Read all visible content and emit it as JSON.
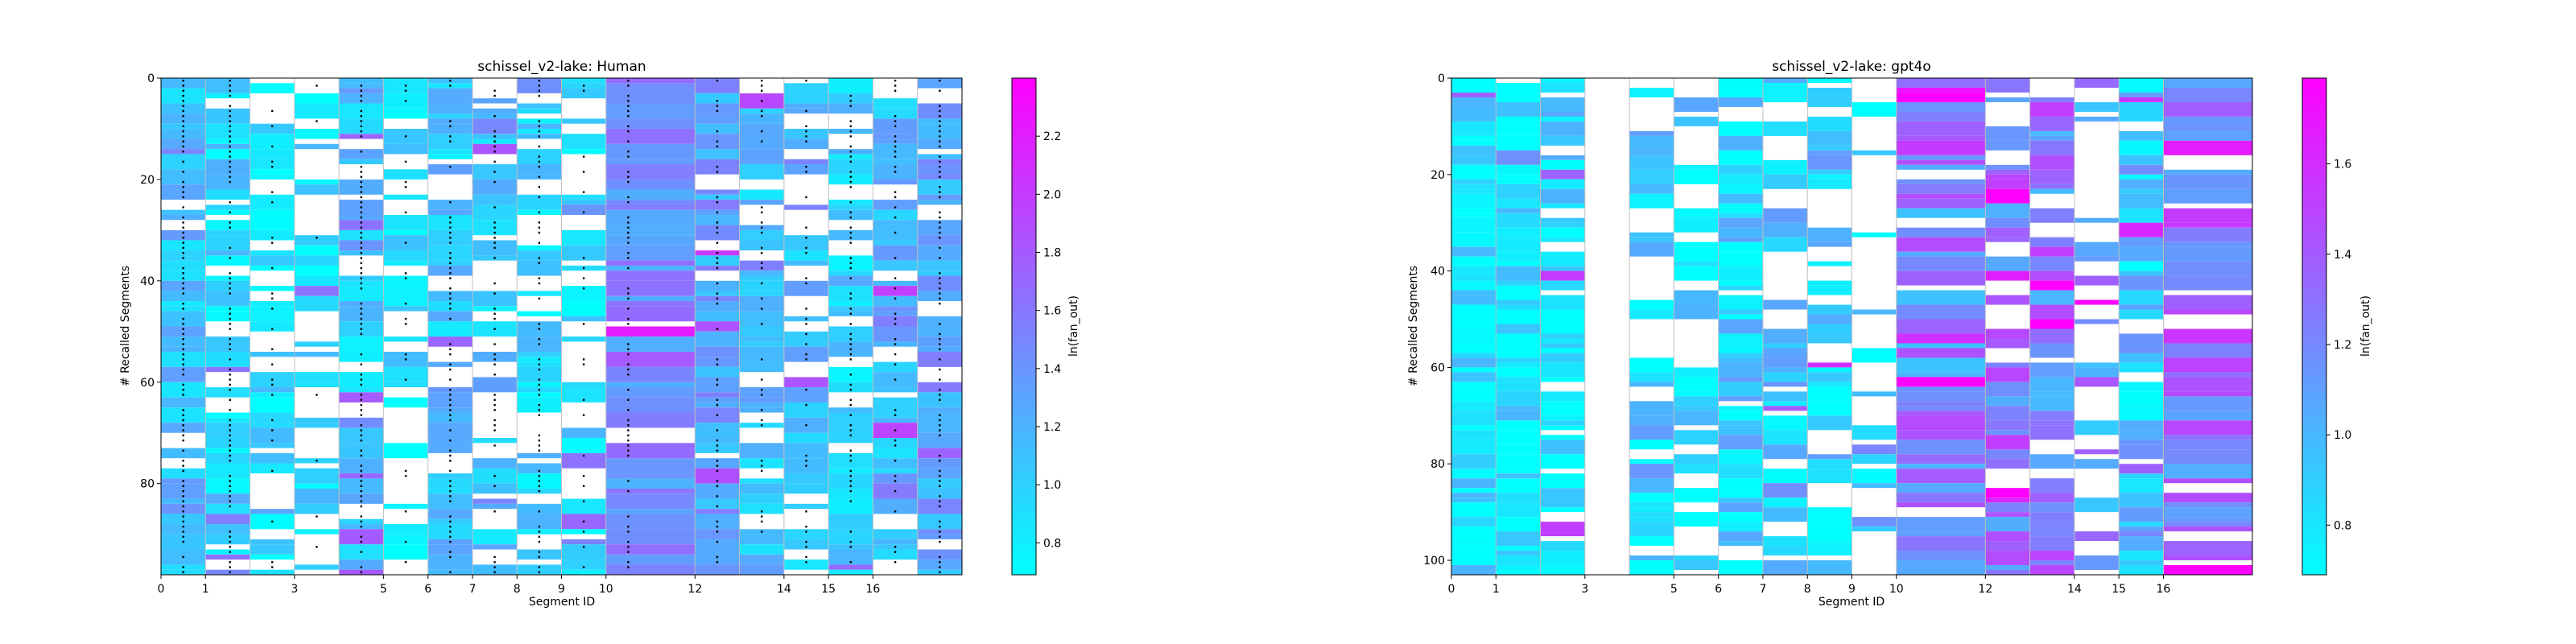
{
  "colors": {
    "low": "#00ffff",
    "mid": "#6495ed",
    "high": "#ff00ff",
    "row_marker": "#000000",
    "separator": "#bfbfbf"
  },
  "chart_data": [
    {
      "type": "heatmap",
      "title": "schissel_v2-lake: Human",
      "xlabel": "Segment ID",
      "ylabel": "# Recalled Segments",
      "colorbar_label": "ln(fan_out)",
      "colormap": "cool",
      "xlim": [
        0,
        18
      ],
      "ylim": [
        0,
        98
      ],
      "x_ticks": [
        0,
        1,
        3,
        5,
        6,
        7,
        8,
        9,
        10,
        12,
        14,
        15,
        16
      ],
      "y_ticks": [
        0,
        20,
        40,
        60,
        80
      ],
      "colorbar_range": [
        0.69,
        2.4
      ],
      "colorbar_ticks": [
        0.8,
        1.0,
        1.2,
        1.4,
        1.6,
        1.8,
        2.0,
        2.2
      ],
      "segment_starts": [
        0,
        1,
        2,
        3,
        4,
        5,
        6,
        7,
        8,
        9,
        10,
        12,
        13,
        14,
        15,
        16,
        17
      ],
      "segment_ends": [
        1,
        2,
        3,
        4,
        5,
        6,
        7,
        8,
        9,
        10,
        12,
        13,
        14,
        15,
        16,
        17,
        18
      ],
      "row_count": 98,
      "segment_values": [
        1.1,
        0.95,
        0.9,
        0.9,
        1.05,
        0.9,
        1.05,
        1.05,
        0.95,
        0.95,
        1.45,
        1.3,
        1.1,
        1.1,
        1.0,
        1.15,
        1.3
      ],
      "segment_blank_rates": [
        0.05,
        0.15,
        0.3,
        0.55,
        0.12,
        0.45,
        0.18,
        0.3,
        0.35,
        0.5,
        0.08,
        0.15,
        0.25,
        0.4,
        0.25,
        0.15,
        0.1
      ],
      "marker_density": [
        0.85,
        0.75,
        0.25,
        0.05,
        0.8,
        0.25,
        0.55,
        0.45,
        0.65,
        0.3,
        0.7,
        0.5,
        0.35,
        0.4,
        0.6,
        0.4,
        0.7
      ],
      "marker_positions": [
        0.5,
        0.55,
        0.5,
        0.5,
        0.5,
        0.5,
        0.5,
        0.5,
        0.5,
        0.5,
        0.25,
        0.5,
        0.5,
        0.5,
        0.5,
        0.5,
        0.5
      ],
      "seed": 11
    },
    {
      "type": "heatmap",
      "title": "schissel_v2-lake: gpt4o",
      "xlabel": "Segment ID",
      "ylabel": "# Recalled Segments",
      "colorbar_label": "ln(fan_out)",
      "colormap": "cool",
      "xlim": [
        0,
        18
      ],
      "ylim": [
        0,
        103
      ],
      "x_ticks": [
        0,
        1,
        3,
        5,
        6,
        7,
        8,
        9,
        10,
        12,
        14,
        15,
        16
      ],
      "y_ticks": [
        0,
        20,
        40,
        60,
        80,
        100
      ],
      "colorbar_range": [
        0.69,
        1.79
      ],
      "colorbar_ticks": [
        0.8,
        1.0,
        1.2,
        1.4,
        1.6
      ],
      "segment_starts": [
        0,
        1,
        2,
        3,
        4,
        5,
        6,
        7,
        8,
        9,
        10,
        12,
        13,
        14,
        15,
        16
      ],
      "segment_ends": [
        1,
        2,
        3,
        4,
        5,
        6,
        7,
        8,
        9,
        10,
        12,
        13,
        14,
        15,
        16,
        18
      ],
      "row_count": 103,
      "segment_values": [
        0.75,
        0.72,
        0.8,
        1.6,
        0.85,
        0.8,
        0.85,
        0.95,
        0.85,
        0.75,
        1.2,
        1.3,
        1.25,
        1.15,
        0.95,
        1.3
      ],
      "segment_blank_rates": [
        0.02,
        0.05,
        0.25,
        0.95,
        0.35,
        0.6,
        0.1,
        0.3,
        0.35,
        0.6,
        0.05,
        0.3,
        0.25,
        0.6,
        0.1,
        0.15
      ],
      "marker_density": [
        0,
        0,
        0,
        0,
        0,
        0,
        0,
        0,
        0,
        0,
        0,
        0,
        0,
        0,
        0,
        0
      ],
      "marker_positions": [
        0.5,
        0.5,
        0.5,
        0.5,
        0.5,
        0.5,
        0.5,
        0.5,
        0.5,
        0.5,
        0.5,
        0.5,
        0.5,
        0.5,
        0.5,
        0.5
      ],
      "seed": 29
    }
  ]
}
